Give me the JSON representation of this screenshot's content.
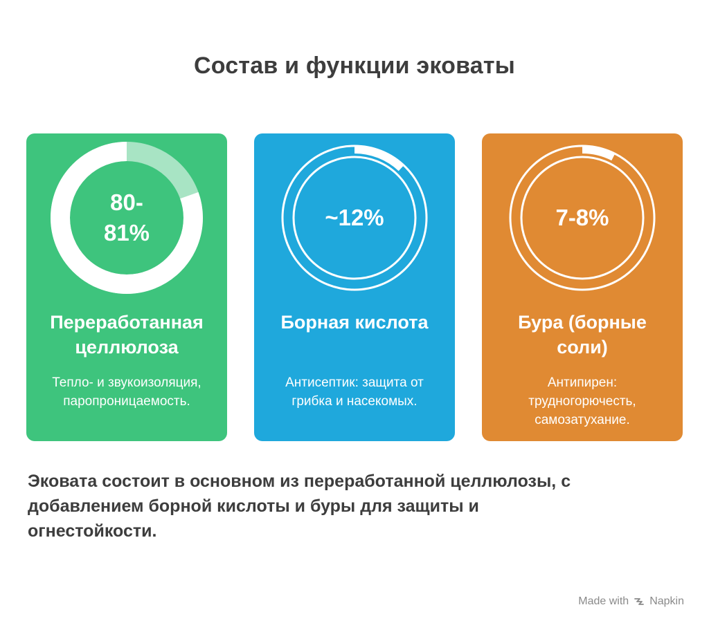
{
  "title": "Состав и функции эковаты",
  "cards": [
    {
      "percent": "80-81%",
      "value": 80.5,
      "heading": "Переработанная целлюлоза",
      "description": "Тепло- и звукоизоляция, паропроницаемость.",
      "color": "#3ec47d"
    },
    {
      "percent": "~12%",
      "value": 12,
      "heading": "Борная кислота",
      "description": "Антисептик: защита от грибка и насекомых.",
      "color": "#1fa8dc"
    },
    {
      "percent": "7-8%",
      "value": 7.5,
      "heading": "Бура (борные соли)",
      "description": "Антипирен: трудногорючесть, самозатухание.",
      "color": "#e08a33"
    }
  ],
  "summary": "Эковата состоит в основном из переработанной целлюлозы, с добавлением борной кислоты и буры для защиты и огнестойкости.",
  "footer": {
    "made_with": "Made with",
    "brand": "Napkin",
    "icon": "napkin-logo-icon"
  }
}
